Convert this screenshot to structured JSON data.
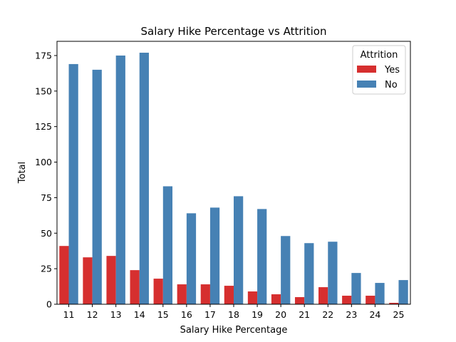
{
  "chart_data": {
    "type": "bar",
    "title": "Salary Hike Percentage vs Attrition",
    "xlabel": "Salary Hike Percentage",
    "ylabel": "Total",
    "categories": [
      "11",
      "12",
      "13",
      "14",
      "15",
      "16",
      "17",
      "18",
      "19",
      "20",
      "21",
      "22",
      "23",
      "24",
      "25"
    ],
    "series": [
      {
        "name": "Yes",
        "color": "#d62f2f",
        "values": [
          41,
          33,
          34,
          24,
          18,
          14,
          14,
          13,
          9,
          7,
          5,
          12,
          6,
          6,
          1
        ]
      },
      {
        "name": "No",
        "color": "#4681b4",
        "values": [
          169,
          165,
          175,
          177,
          83,
          64,
          68,
          76,
          67,
          48,
          43,
          44,
          22,
          15,
          17
        ]
      }
    ],
    "ylim": [
      0,
      185
    ],
    "yticks": [
      0,
      25,
      50,
      75,
      100,
      125,
      150,
      175
    ],
    "legend": {
      "title": "Attrition",
      "position": "top-right"
    },
    "grid": false
  }
}
